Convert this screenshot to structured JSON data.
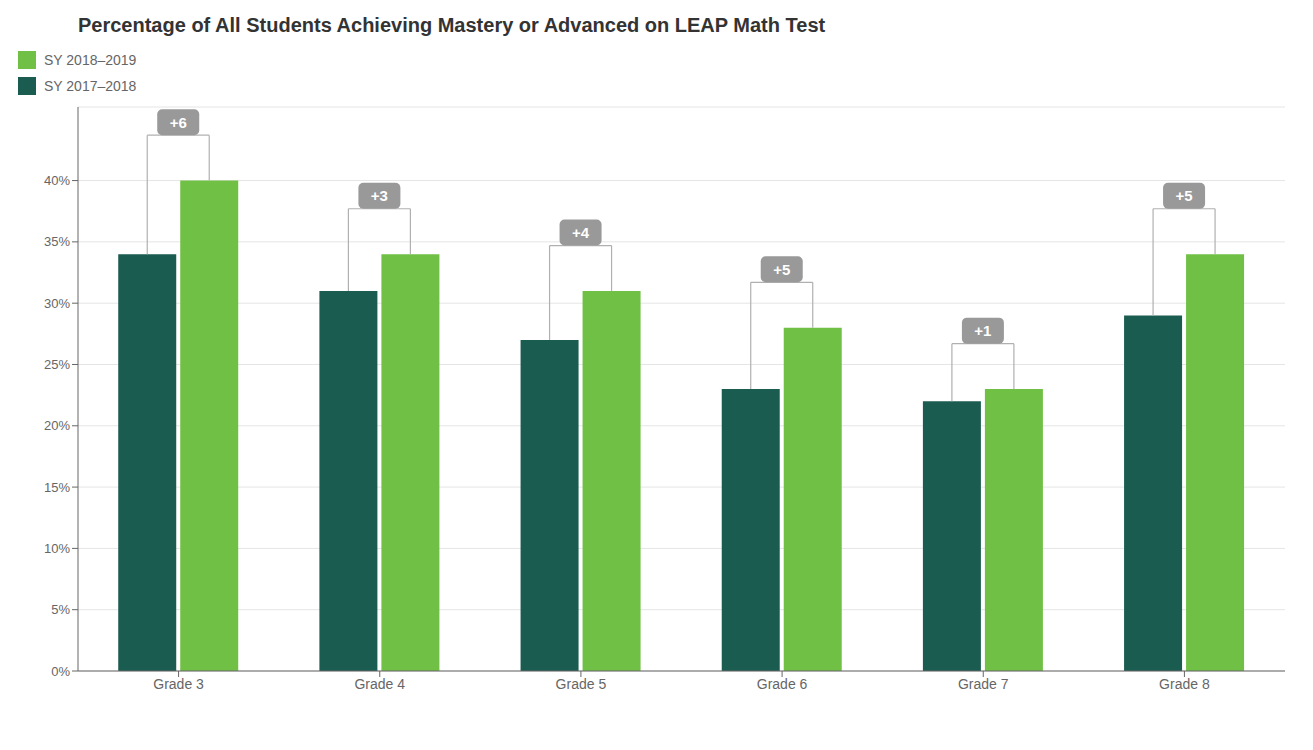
{
  "chart_data": {
    "type": "bar",
    "title": "Percentage of All Students Achieving Mastery or Advanced on LEAP Math Test",
    "categories": [
      "Grade 3",
      "Grade 4",
      "Grade 5",
      "Grade 6",
      "Grade 7",
      "Grade 8"
    ],
    "series": [
      {
        "name": "SY 2017–2018",
        "color": "#1a5c50",
        "values": [
          34,
          31,
          27,
          23,
          22,
          29
        ]
      },
      {
        "name": "SY 2018–2019",
        "color": "#6fc044",
        "values": [
          40,
          34,
          31,
          28,
          23,
          34
        ]
      }
    ],
    "annotations": [
      "+6",
      "+3",
      "+4",
      "+5",
      "+1",
      "+5"
    ],
    "ylim": [
      0,
      46
    ],
    "yticks": [
      {
        "value": 0,
        "label": "0%"
      },
      {
        "value": 5,
        "label": "5%"
      },
      {
        "value": 10,
        "label": "10%"
      },
      {
        "value": 15,
        "label": "15%"
      },
      {
        "value": 20,
        "label": "20%"
      },
      {
        "value": 25,
        "label": "25%"
      },
      {
        "value": 30,
        "label": "30%"
      },
      {
        "value": 35,
        "label": "35%"
      },
      {
        "value": 40,
        "label": "40%"
      }
    ],
    "grid": true,
    "legend": "upper right"
  }
}
